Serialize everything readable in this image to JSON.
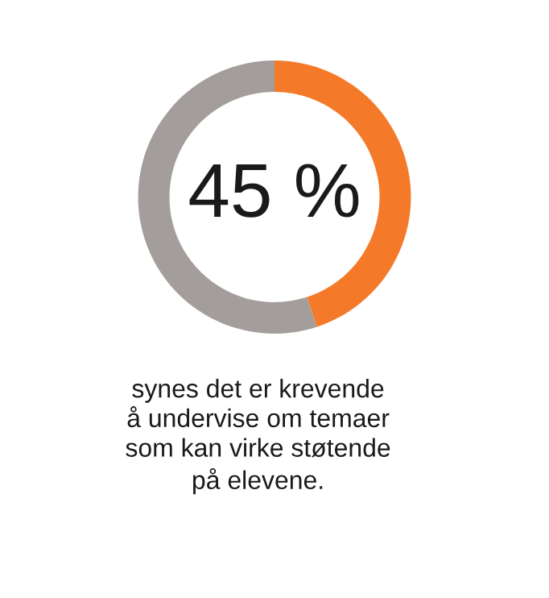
{
  "chart_data": {
    "type": "donut",
    "categories": [
      null,
      null
    ],
    "values": [
      45,
      55
    ],
    "colors": [
      "#f47a2a",
      "#a39e9b"
    ],
    "annotations": [
      "45 %",
      "synes det er krevende\nå undervise om temaer\nsom kan virke støtende\npå elevene."
    ]
  }
}
